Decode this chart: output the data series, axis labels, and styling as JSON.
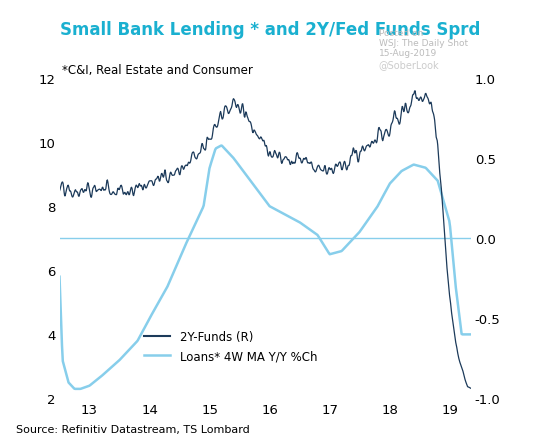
{
  "title": "Small Bank Lending * and 2Y/Fed Funds Sprd",
  "subtitle": "*C&I, Real Estate and Consumer",
  "source": "Source: Refinitiv Datastream, TS Lombard",
  "watermark_line1": "Posted on",
  "watermark_line2": "WSJ: The Daily Shot",
  "watermark_line3": "15-Aug-2019",
  "watermark_handle": "@SoberLook",
  "title_color": "#1AB0D0",
  "background_color": "#FFFFFF",
  "left_ylim": [
    2,
    12
  ],
  "right_ylim": [
    -1.0,
    1.0
  ],
  "left_yticks": [
    2,
    4,
    6,
    8,
    10,
    12
  ],
  "right_yticks": [
    -1.0,
    -0.5,
    0.0,
    0.5,
    1.0
  ],
  "xticks": [
    13,
    14,
    15,
    16,
    17,
    18,
    19
  ],
  "xmin": 12.5,
  "xmax": 19.35,
  "hline_color": "#87CEEB",
  "loans_color": "#87CEEB",
  "spread_color": "#1C3A5A",
  "legend_label_spread": "2Y-Funds (R)",
  "legend_label_loans": "Loans* 4W MA Y/Y %Ch",
  "loans_anchors_x": [
    12.5,
    12.55,
    12.65,
    12.75,
    12.85,
    13.0,
    13.2,
    13.5,
    13.8,
    14.0,
    14.3,
    14.6,
    14.9,
    15.0,
    15.1,
    15.2,
    15.4,
    15.6,
    15.8,
    16.0,
    16.2,
    16.5,
    16.8,
    17.0,
    17.2,
    17.5,
    17.8,
    18.0,
    18.2,
    18.4,
    18.6,
    18.8,
    19.0,
    19.1,
    19.2
  ],
  "loans_anchors_y": [
    5.8,
    3.2,
    2.5,
    2.3,
    2.3,
    2.4,
    2.7,
    3.2,
    3.8,
    4.5,
    5.5,
    6.8,
    8.0,
    9.2,
    9.8,
    9.9,
    9.5,
    9.0,
    8.5,
    8.0,
    7.8,
    7.5,
    7.1,
    6.5,
    6.6,
    7.2,
    8.0,
    8.7,
    9.1,
    9.3,
    9.2,
    8.8,
    7.5,
    5.5,
    4.0
  ],
  "spread_anchors_x": [
    12.5,
    12.7,
    13.0,
    13.3,
    13.6,
    13.9,
    14.2,
    14.5,
    14.8,
    15.0,
    15.1,
    15.2,
    15.3,
    15.4,
    15.5,
    15.6,
    15.7,
    15.8,
    15.9,
    16.0,
    16.1,
    16.2,
    16.4,
    16.6,
    16.8,
    17.0,
    17.2,
    17.4,
    17.6,
    17.8,
    18.0,
    18.1,
    18.2,
    18.3,
    18.4,
    18.5,
    18.6,
    18.65,
    18.7,
    18.75,
    18.8,
    18.85,
    18.9,
    18.95,
    19.0,
    19.05,
    19.1,
    19.15,
    19.2,
    19.25,
    19.3
  ],
  "spread_anchors_y": [
    0.3,
    0.28,
    0.3,
    0.32,
    0.3,
    0.33,
    0.38,
    0.44,
    0.52,
    0.6,
    0.68,
    0.75,
    0.8,
    0.84,
    0.82,
    0.78,
    0.72,
    0.65,
    0.58,
    0.52,
    0.5,
    0.52,
    0.5,
    0.48,
    0.46,
    0.44,
    0.46,
    0.5,
    0.56,
    0.62,
    0.68,
    0.72,
    0.78,
    0.82,
    0.86,
    0.88,
    0.9,
    0.88,
    0.82,
    0.72,
    0.55,
    0.35,
    0.1,
    -0.15,
    -0.38,
    -0.52,
    -0.65,
    -0.75,
    -0.82,
    -0.88,
    -0.92
  ]
}
